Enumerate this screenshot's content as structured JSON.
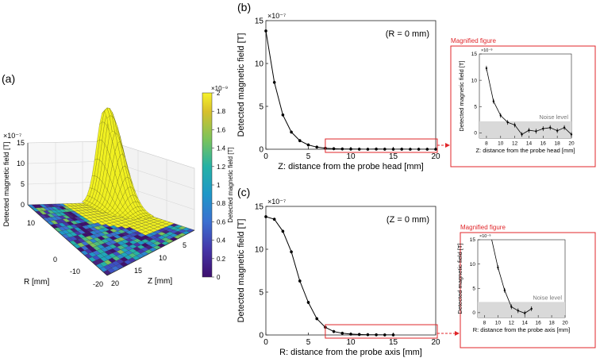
{
  "panel_labels": {
    "a": "(a)",
    "b": "(b)",
    "c": "(c)"
  },
  "magnified_title": "Magnified figure",
  "noise_label": "Noise level",
  "colors": {
    "line": "#000000",
    "highlight": "#e0262a",
    "noise_band": "#d9d9d9",
    "surface_peak": "#f0f021",
    "axis": "#222222"
  },
  "colorbar": {
    "exponent": "×10⁻⁹",
    "label": "Detected magnetic field [T]",
    "ticks": [
      "2",
      "1.8",
      "1.6",
      "1.4",
      "1.2",
      "1",
      "0.8",
      "0.6",
      "0.4",
      "0.2",
      "0"
    ],
    "scale_max_label": "2"
  },
  "chart_data": [
    {
      "id": "a",
      "type": "heatmap",
      "title": "",
      "zlabel": "Detected magnetic field [T]",
      "zexponent": "×10⁻⁷",
      "zticks": [
        "15",
        "10",
        "5",
        "0"
      ],
      "xlabel": "R [mm]",
      "xticks": [
        "10",
        "0",
        "-10",
        "-20"
      ],
      "ylabel": "Z [mm]",
      "yticks": [
        "5",
        "10",
        "15",
        "20"
      ],
      "zlim": [
        0,
        15
      ],
      "peak_value": 13.8
    },
    {
      "id": "b",
      "type": "line",
      "title": "",
      "annotation": "(R = 0 mm)",
      "exponent": "×10⁻⁷",
      "xlabel": "Z: distance from the probe head [mm]",
      "ylabel": "Detected magnetic field [T]",
      "xlim": [
        0,
        20
      ],
      "ylim": [
        0,
        15
      ],
      "xticks": [
        "0",
        "5",
        "10",
        "15",
        "20"
      ],
      "yticks": [
        "0",
        "5",
        "10",
        "15"
      ],
      "x": [
        0,
        1,
        2,
        3,
        4,
        5,
        6,
        7,
        8,
        9,
        10,
        11,
        12,
        13,
        14,
        15,
        16,
        17,
        18,
        19,
        20
      ],
      "y": [
        13.8,
        7.8,
        4.0,
        2.0,
        1.0,
        0.5,
        0.25,
        0.12,
        0.06,
        0.03,
        0.02,
        0.01,
        0.0,
        0.02,
        0.01,
        0.0,
        0.01,
        0.0,
        0.0,
        0.0,
        0.0
      ],
      "highlight_x": [
        7,
        20
      ],
      "highlight_y": [
        0,
        1.2
      ]
    },
    {
      "id": "b-inset",
      "type": "line",
      "title": "Magnified figure",
      "exponent": "×10⁻⁹",
      "xlabel": "Z: distance from the probe head [mm]",
      "ylabel": "Detected magnetic field [T]",
      "xlim": [
        7,
        20
      ],
      "ylim": [
        -1,
        15
      ],
      "xticks": [
        "8",
        "10",
        "12",
        "14",
        "16",
        "18",
        "20"
      ],
      "yticks": [
        "0",
        "5",
        "10",
        "15"
      ],
      "x": [
        8,
        9,
        10,
        11,
        12,
        13,
        14,
        15,
        16,
        17,
        18,
        19,
        20
      ],
      "y": [
        12.3,
        6.0,
        3.3,
        2.0,
        1.5,
        -0.3,
        0.5,
        0.3,
        0.8,
        1.0,
        0.4,
        1.0,
        -0.3
      ],
      "noise_level": [
        0,
        2.2
      ]
    },
    {
      "id": "c",
      "type": "line",
      "title": "",
      "annotation": "(Z = 0 mm)",
      "exponent": "×10⁻⁷",
      "xlabel": "R: distance from the probe axis [mm]",
      "ylabel": "Detected magnetic field [T]",
      "xlim": [
        0,
        20
      ],
      "ylim": [
        0,
        15
      ],
      "xticks": [
        "0",
        "5",
        "10",
        "15",
        "20"
      ],
      "yticks": [
        "0",
        "5",
        "10",
        "15"
      ],
      "x": [
        0,
        1,
        2,
        3,
        4,
        5,
        6,
        7,
        8,
        9,
        10,
        11,
        12,
        13,
        14,
        15
      ],
      "y": [
        13.8,
        13.5,
        12.1,
        9.7,
        6.3,
        3.8,
        1.9,
        0.9,
        0.4,
        0.2,
        0.1,
        0.06,
        0.03,
        0.02,
        0.01,
        0.01
      ],
      "highlight_x": [
        7,
        20
      ],
      "highlight_y": [
        0,
        1.2
      ]
    },
    {
      "id": "c-inset",
      "type": "line",
      "title": "Magnified figure",
      "exponent": "×10⁻⁹",
      "xlabel": "R: distance from the probe axis [mm]",
      "ylabel": "Detected magnetic field [T]",
      "xlim": [
        7,
        20
      ],
      "ylim": [
        -1,
        15
      ],
      "xticks": [
        "8",
        "10",
        "12",
        "14",
        "16",
        "18",
        "20"
      ],
      "yticks": [
        "0",
        "5",
        "10",
        "15"
      ],
      "x": [
        9,
        10,
        11,
        12,
        13,
        14,
        15
      ],
      "y": [
        15.5,
        9.3,
        4.6,
        1.2,
        0.4,
        -0.1,
        0.8
      ],
      "noise_level": [
        0,
        2.2
      ]
    }
  ]
}
